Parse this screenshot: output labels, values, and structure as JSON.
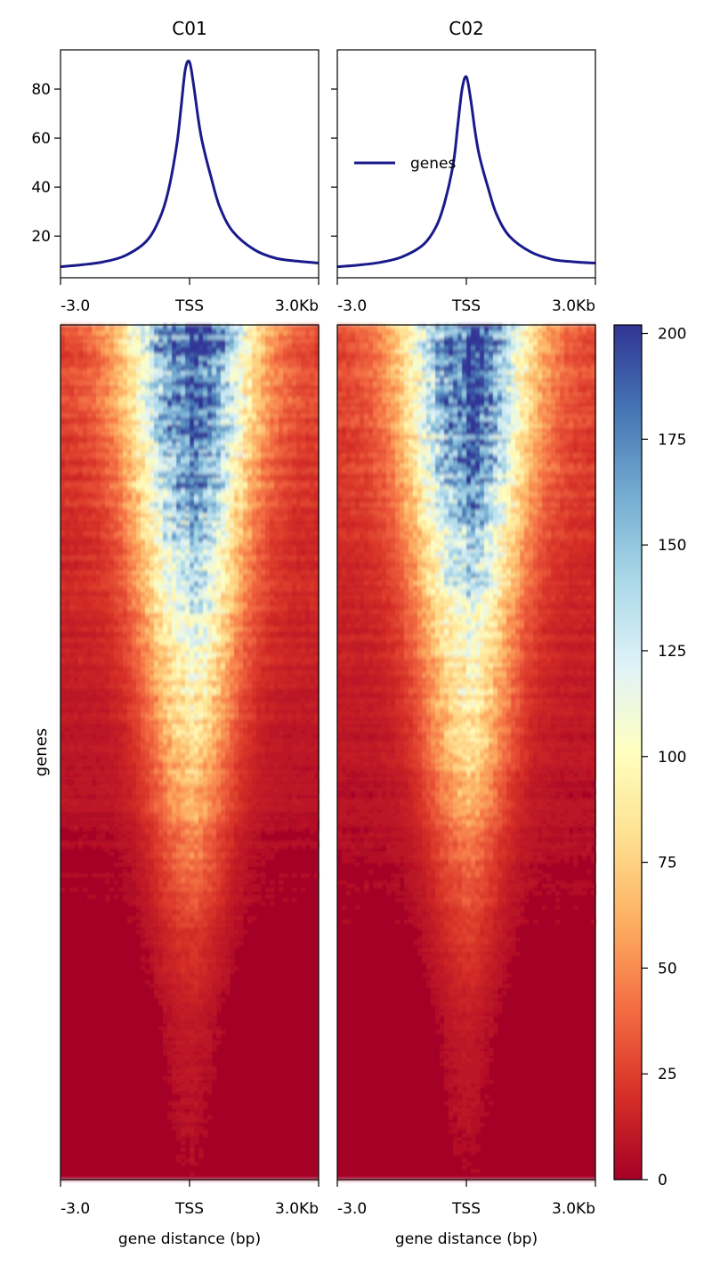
{
  "chart_data": [
    {
      "type": "line",
      "panel": "profile",
      "title": "C01",
      "x_tick_labels": [
        "-3.0",
        "TSS",
        "3.0Kb"
      ],
      "x": [
        -3000,
        -2500,
        -2000,
        -1500,
        -1000,
        -700,
        -500,
        -300,
        -200,
        -100,
        0,
        100,
        200,
        300,
        500,
        700,
        1000,
        1500,
        2000,
        2500,
        3000
      ],
      "y": [
        7.5,
        8.3,
        9.5,
        12,
        18,
        27,
        38,
        57,
        72,
        88,
        91,
        81,
        68,
        58,
        44,
        32,
        22,
        14.5,
        11,
        9.8,
        9
      ],
      "y_ticks": [
        20,
        40,
        60,
        80
      ],
      "ylim": [
        3,
        96
      ],
      "series": [
        {
          "name": "genes",
          "color": "#1a1a8c"
        }
      ]
    },
    {
      "type": "line",
      "panel": "profile",
      "title": "C02",
      "x_tick_labels": [
        "-3.0",
        "TSS",
        "3.0Kb"
      ],
      "x": [
        -3000,
        -2500,
        -2000,
        -1500,
        -1000,
        -700,
        -500,
        -300,
        -200,
        -100,
        0,
        100,
        200,
        300,
        500,
        700,
        1000,
        1500,
        2000,
        2500,
        3000
      ],
      "y": [
        7.5,
        8.2,
        9.3,
        11.5,
        16.5,
        24,
        34,
        50,
        65,
        80,
        85,
        76,
        63,
        53,
        40,
        29,
        20,
        13.5,
        10.5,
        9.5,
        9
      ],
      "y_ticks": [
        20,
        40,
        60,
        80
      ],
      "ylim": [
        3,
        96
      ],
      "legend": {
        "label": "genes",
        "position": "center-left"
      },
      "series": [
        {
          "name": "genes",
          "color": "#1a1a8c"
        }
      ]
    },
    {
      "type": "heatmap",
      "panels": [
        "C01",
        "C02"
      ],
      "x_tick_labels": [
        "-3.0",
        "TSS",
        "3.0Kb"
      ],
      "xlabel": "gene distance (bp)",
      "ylabel": "genes",
      "sort": "descending",
      "colormap": "RdYlBu",
      "colorbar": {
        "min": 0,
        "max": 202,
        "ticks": [
          0,
          25,
          50,
          75,
          100,
          125,
          150,
          175,
          200
        ]
      },
      "center_signal_by_gene_rank": [
        {
          "rank": 0.0,
          "value": 195
        },
        {
          "rank": 0.1,
          "value": 175
        },
        {
          "rank": 0.2,
          "value": 160
        },
        {
          "rank": 0.3,
          "value": 125
        },
        {
          "rank": 0.4,
          "value": 95
        },
        {
          "rank": 0.5,
          "value": 75
        },
        {
          "rank": 0.6,
          "value": 45
        },
        {
          "rank": 0.7,
          "value": 25
        },
        {
          "rank": 0.8,
          "value": 12
        },
        {
          "rank": 1.0,
          "value": 5
        }
      ]
    }
  ]
}
